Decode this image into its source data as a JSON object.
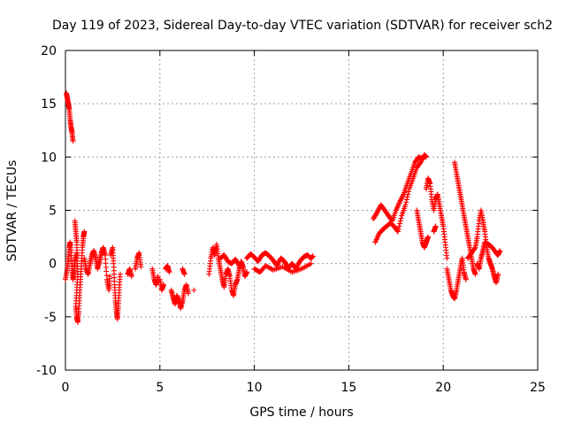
{
  "chart_data": {
    "type": "scatter",
    "title": "Day 119 of 2023, Sidereal Day-to-day VTEC variation (SDTVAR) for receiver sch2",
    "xlabel": "GPS time / hours",
    "ylabel": "SDTVAR / TECUs",
    "xlim": [
      0,
      25
    ],
    "ylim": [
      -10,
      20
    ],
    "xticks": [
      "0",
      "5",
      "10",
      "15",
      "20",
      "25"
    ],
    "yticks": [
      "-10",
      "-5",
      "0",
      "5",
      "10",
      "15",
      "20"
    ],
    "grid": true,
    "marker": "+",
    "color": "#ff0000",
    "series": [
      {
        "name": "sch2",
        "segments": [
          [
            [
              0.0,
              -1.5
            ],
            [
              0.1,
              -0.5
            ],
            [
              0.15,
              0.5
            ],
            [
              0.2,
              1.5
            ],
            [
              0.25,
              2.0
            ],
            [
              0.3,
              1.0
            ],
            [
              0.35,
              -0.5
            ],
            [
              0.4,
              -1.5
            ],
            [
              0.45,
              -0.8
            ],
            [
              0.5,
              0.2
            ],
            [
              0.6,
              1.0
            ]
          ],
          [
            [
              0.05,
              16.0
            ],
            [
              0.1,
              15.5
            ],
            [
              0.15,
              15.0
            ],
            [
              0.2,
              14.5
            ],
            [
              0.25,
              13.5
            ],
            [
              0.3,
              12.8
            ],
            [
              0.35,
              12.3
            ],
            [
              0.4,
              11.5
            ]
          ],
          [
            [
              0.5,
              4.0
            ],
            [
              0.55,
              3.0
            ],
            [
              0.6,
              2.0
            ],
            [
              0.62,
              0.5
            ],
            [
              0.65,
              -1.0
            ],
            [
              0.6,
              -2.5
            ],
            [
              0.55,
              -4.0
            ],
            [
              0.6,
              -5.0
            ],
            [
              0.65,
              -5.5
            ],
            [
              0.7,
              -4.5
            ],
            [
              0.75,
              -3.0
            ],
            [
              0.8,
              -1.5
            ],
            [
              0.85,
              0.0
            ],
            [
              0.9,
              1.5
            ],
            [
              0.95,
              2.5
            ],
            [
              1.0,
              3.0
            ]
          ],
          [
            [
              1.0,
              0.5
            ],
            [
              1.1,
              -0.5
            ],
            [
              1.2,
              -1.0
            ],
            [
              1.3,
              0.0
            ],
            [
              1.4,
              0.8
            ],
            [
              1.5,
              1.2
            ],
            [
              1.6,
              0.5
            ],
            [
              1.7,
              -0.5
            ],
            [
              1.8,
              0.2
            ],
            [
              1.9,
              1.0
            ],
            [
              2.0,
              1.5
            ],
            [
              2.1,
              0.8
            ],
            [
              2.2,
              -1.5
            ],
            [
              2.3,
              -2.5
            ],
            [
              2.35,
              -1.2
            ]
          ],
          [
            [
              2.4,
              0.8
            ],
            [
              2.5,
              1.5
            ],
            [
              2.55,
              0.0
            ],
            [
              2.6,
              -2.0
            ],
            [
              2.65,
              -3.5
            ],
            [
              2.7,
              -4.5
            ],
            [
              2.75,
              -5.2
            ],
            [
              2.8,
              -4.0
            ],
            [
              2.85,
              -2.5
            ],
            [
              2.9,
              -1.0
            ]
          ],
          [
            [
              3.3,
              -1.0
            ],
            [
              3.4,
              -0.5
            ],
            [
              3.5,
              -1.2
            ]
          ],
          [
            [
              3.7,
              -0.5
            ],
            [
              3.8,
              0.5
            ],
            [
              3.9,
              1.0
            ],
            [
              4.0,
              -0.3
            ]
          ],
          [
            [
              4.6,
              -0.5
            ],
            [
              4.7,
              -1.5
            ],
            [
              4.8,
              -2.0
            ],
            [
              4.9,
              -1.2
            ]
          ],
          [
            [
              5.0,
              -1.5
            ],
            [
              5.1,
              -2.5
            ],
            [
              5.2,
              -2.0
            ]
          ],
          [
            [
              5.3,
              -0.5
            ],
            [
              5.4,
              -0.2
            ],
            [
              5.5,
              -0.8
            ]
          ],
          [
            [
              5.6,
              -2.5
            ],
            [
              5.7,
              -3.2
            ],
            [
              5.8,
              -3.8
            ],
            [
              5.9,
              -3.0
            ],
            [
              6.0,
              -3.5
            ],
            [
              6.1,
              -4.2
            ],
            [
              6.2,
              -3.5
            ],
            [
              6.3,
              -2.5
            ],
            [
              6.4,
              -2.0
            ],
            [
              6.5,
              -2.8
            ]
          ],
          [
            [
              6.3,
              -1.0
            ],
            [
              6.2,
              -0.5
            ]
          ],
          [
            [
              6.8,
              -2.5
            ]
          ],
          [
            [
              7.6,
              -1.0
            ],
            [
              7.7,
              0.5
            ],
            [
              7.8,
              1.5
            ],
            [
              7.9,
              0.8
            ],
            [
              8.0,
              1.8
            ],
            [
              8.1,
              0.5
            ],
            [
              8.2,
              -0.5
            ],
            [
              8.3,
              -1.5
            ],
            [
              8.4,
              -2.2
            ],
            [
              8.5,
              -1.0
            ],
            [
              8.6,
              -0.5
            ],
            [
              8.7,
              -1.2
            ],
            [
              8.8,
              -2.5
            ],
            [
              8.9,
              -3.0
            ],
            [
              9.0,
              -2.0
            ],
            [
              9.1,
              -1.5
            ],
            [
              9.2,
              -0.5
            ],
            [
              9.3,
              0.2
            ],
            [
              9.4,
              -0.3
            ],
            [
              9.5,
              -1.2
            ],
            [
              9.6,
              -0.8
            ]
          ],
          [
            [
              8.2,
              0.5
            ],
            [
              8.4,
              0.8
            ],
            [
              8.6,
              0.2
            ],
            [
              8.8,
              0.0
            ],
            [
              9.0,
              0.4
            ],
            [
              9.2,
              -0.2
            ]
          ],
          [
            [
              9.6,
              0.5
            ],
            [
              9.8,
              0.9
            ],
            [
              10.0,
              0.6
            ],
            [
              10.2,
              0.2
            ],
            [
              10.4,
              0.8
            ],
            [
              10.6,
              1.0
            ],
            [
              10.8,
              0.7
            ],
            [
              11.0,
              0.3
            ],
            [
              11.2,
              -0.2
            ],
            [
              11.4,
              0.5
            ],
            [
              11.6,
              0.2
            ],
            [
              11.8,
              -0.4
            ],
            [
              12.0,
              0.0
            ],
            [
              12.2,
              -0.5
            ],
            [
              12.4,
              0.2
            ],
            [
              12.6,
              0.6
            ],
            [
              12.8,
              0.8
            ],
            [
              13.0,
              0.5
            ],
            [
              13.1,
              0.7
            ]
          ],
          [
            [
              10.0,
              -0.5
            ],
            [
              10.3,
              -0.8
            ],
            [
              10.6,
              -0.2
            ],
            [
              11.0,
              -0.6
            ],
            [
              11.5,
              -0.3
            ],
            [
              12.0,
              -0.8
            ],
            [
              12.5,
              -0.5
            ],
            [
              13.0,
              0.0
            ]
          ],
          [
            [
              16.3,
              4.2
            ],
            [
              16.5,
              4.8
            ],
            [
              16.7,
              5.5
            ],
            [
              16.9,
              5.0
            ],
            [
              17.1,
              4.5
            ],
            [
              17.3,
              4.0
            ],
            [
              17.5,
              5.0
            ],
            [
              17.7,
              5.8
            ],
            [
              17.9,
              6.5
            ],
            [
              18.1,
              7.5
            ],
            [
              18.3,
              8.5
            ],
            [
              18.5,
              9.5
            ],
            [
              18.7,
              10.0
            ],
            [
              18.9,
              9.8
            ]
          ],
          [
            [
              16.4,
              2.0
            ],
            [
              16.6,
              2.8
            ],
            [
              16.8,
              3.2
            ],
            [
              17.0,
              3.5
            ],
            [
              17.2,
              3.8
            ],
            [
              17.4,
              3.5
            ],
            [
              17.6,
              3.0
            ],
            [
              17.8,
              4.5
            ],
            [
              18.0,
              5.5
            ],
            [
              18.2,
              7.0
            ],
            [
              18.4,
              8.0
            ],
            [
              18.6,
              9.0
            ],
            [
              18.8,
              9.5
            ],
            [
              19.0,
              10.2
            ],
            [
              19.1,
              10.0
            ]
          ],
          [
            [
              18.6,
              5.0
            ],
            [
              18.7,
              4.0
            ],
            [
              18.8,
              3.0
            ],
            [
              18.9,
              2.0
            ],
            [
              19.0,
              1.5
            ],
            [
              19.1,
              2.0
            ],
            [
              19.2,
              2.5
            ]
          ],
          [
            [
              19.1,
              7.0
            ],
            [
              19.2,
              8.0
            ],
            [
              19.3,
              7.5
            ],
            [
              19.4,
              6.0
            ],
            [
              19.5,
              5.0
            ],
            [
              19.6,
              6.0
            ],
            [
              19.7,
              6.5
            ],
            [
              19.8,
              5.5
            ],
            [
              19.9,
              4.5
            ],
            [
              20.0,
              3.5
            ],
            [
              20.1,
              2.0
            ],
            [
              20.2,
              0.5
            ]
          ],
          [
            [
              19.5,
              3.0
            ],
            [
              19.6,
              3.5
            ]
          ],
          [
            [
              20.2,
              -0.5
            ],
            [
              20.3,
              -1.5
            ],
            [
              20.4,
              -2.5
            ],
            [
              20.5,
              -3.0
            ],
            [
              20.6,
              -3.3
            ],
            [
              20.7,
              -2.5
            ],
            [
              20.8,
              -1.5
            ],
            [
              20.9,
              -0.5
            ],
            [
              21.0,
              0.5
            ],
            [
              21.1,
              -0.8
            ],
            [
              21.2,
              -1.5
            ]
          ],
          [
            [
              20.6,
              9.5
            ],
            [
              20.7,
              8.5
            ],
            [
              20.8,
              7.5
            ],
            [
              20.9,
              6.5
            ],
            [
              21.0,
              5.5
            ],
            [
              21.1,
              4.5
            ],
            [
              21.2,
              3.5
            ],
            [
              21.3,
              2.5
            ],
            [
              21.4,
              1.5
            ],
            [
              21.5,
              0.5
            ],
            [
              21.6,
              -0.5
            ],
            [
              21.7,
              -1.0
            ]
          ],
          [
            [
              21.3,
              0.5
            ],
            [
              21.5,
              1.0
            ],
            [
              21.7,
              1.5
            ],
            [
              21.8,
              2.5
            ],
            [
              21.9,
              4.0
            ],
            [
              22.0,
              5.0
            ],
            [
              22.1,
              4.0
            ],
            [
              22.2,
              3.0
            ],
            [
              22.3,
              1.5
            ],
            [
              22.4,
              0.5
            ],
            [
              22.5,
              0.0
            ],
            [
              22.6,
              -0.5
            ],
            [
              22.7,
              -1.2
            ],
            [
              22.8,
              -1.8
            ],
            [
              22.9,
              -1.0
            ]
          ],
          [
            [
              21.8,
              0.0
            ],
            [
              21.9,
              -0.5
            ],
            [
              22.0,
              0.5
            ],
            [
              22.1,
              1.2
            ],
            [
              22.2,
              2.0
            ],
            [
              22.4,
              1.8
            ],
            [
              22.6,
              1.5
            ],
            [
              22.8,
              1.0
            ],
            [
              22.9,
              0.8
            ],
            [
              23.0,
              1.2
            ]
          ]
        ]
      }
    ]
  }
}
